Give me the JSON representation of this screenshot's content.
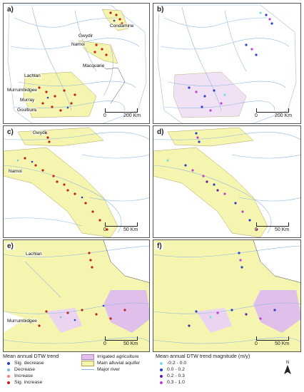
{
  "panels": [
    {
      "label": "a)",
      "scale_left": "0",
      "scale_right": "200 Km",
      "rivers": [
        "Condamine",
        "Gwydir",
        "Namoi",
        "Macquarie",
        "Lachlan",
        "Murrumbidgee",
        "Murray",
        "Goulburn"
      ]
    },
    {
      "label": "b)",
      "scale_left": "0",
      "scale_right": "200 Km"
    },
    {
      "label": "c)",
      "scale_left": "0",
      "scale_right": "50 Km",
      "rivers": [
        "Gwydir",
        "Namoi"
      ]
    },
    {
      "label": "d)",
      "scale_left": "0",
      "scale_right": "50 Km"
    },
    {
      "label": "e)",
      "scale_left": "0",
      "scale_right": "50 Km",
      "rivers": [
        "Lachlan",
        "Murrumbidgee"
      ]
    },
    {
      "label": "f)",
      "scale_left": "0",
      "scale_right": "50 Km"
    }
  ],
  "legend_trend": {
    "title": "Mean annual DTW trend",
    "items": [
      {
        "label": "Sig. decrease",
        "color": "#1f3fbf"
      },
      {
        "label": "Decrease",
        "color": "#6fc0e0"
      },
      {
        "label": "Increase",
        "color": "#f08080"
      },
      {
        "label": "Sig. increase",
        "color": "#c0201a"
      }
    ]
  },
  "legend_features": {
    "items": [
      {
        "label": "Irrigated agriculture",
        "color": "#e0c0ea"
      },
      {
        "label": "Main alluvial aquifer",
        "color": "#f5f5b0"
      },
      {
        "label": "Major river",
        "color": "#8fb8e0"
      }
    ]
  },
  "legend_magnitude": {
    "title": "Mean annual DTW trend magnitude (m/y)",
    "items": [
      {
        "label": "-0.2 - 0.0",
        "color": "#7de0e0"
      },
      {
        "label": "0.0 - 0.2",
        "color": "#2a3fd0"
      },
      {
        "label": "0.2 - 0.3",
        "color": "#5a1fa0"
      },
      {
        "label": "0.3 - 1.0",
        "color": "#c040d0"
      }
    ]
  },
  "north_label": "N"
}
